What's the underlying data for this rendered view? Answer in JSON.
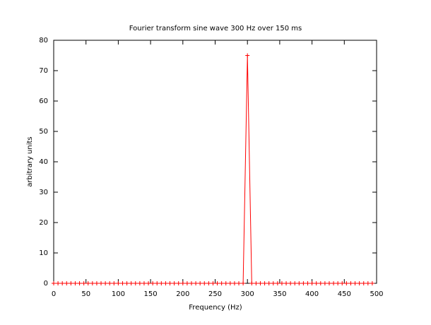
{
  "chart_data": {
    "type": "line",
    "title": "Fourier transform sine wave 300 Hz over 150 ms",
    "xlabel": "Frequency (Hz)",
    "ylabel": "arbitrary units",
    "x": [
      0,
      6.667,
      13.333,
      20,
      26.667,
      33.333,
      40,
      46.667,
      53.333,
      60,
      66.667,
      73.333,
      80,
      86.667,
      93.333,
      100,
      106.667,
      113.333,
      120,
      126.667,
      133.333,
      140,
      146.667,
      153.333,
      160,
      166.667,
      173.333,
      180,
      186.667,
      193.333,
      200,
      206.667,
      213.333,
      220,
      226.667,
      233.333,
      240,
      246.667,
      253.333,
      260,
      266.667,
      273.333,
      280,
      286.667,
      293.333,
      300,
      306.667,
      313.333,
      320,
      326.667,
      333.333,
      340,
      346.667,
      353.333,
      360,
      366.667,
      373.333,
      380,
      386.667,
      393.333,
      400,
      406.667,
      413.333,
      420,
      426.667,
      433.333,
      440,
      446.667,
      453.333,
      460,
      466.667,
      473.333,
      480,
      486.667,
      493.333
    ],
    "series": [
      {
        "color": "#ff0000",
        "values": [
          0,
          0,
          0,
          0,
          0,
          0,
          0,
          0,
          0,
          0,
          0,
          0,
          0,
          0,
          0,
          0,
          0,
          0,
          0,
          0,
          0,
          0,
          0,
          0,
          0,
          0,
          0,
          0,
          0,
          0,
          0,
          0,
          0,
          0,
          0,
          0,
          0,
          0,
          0,
          0,
          0,
          0,
          0,
          0,
          0,
          75,
          0,
          0,
          0,
          0,
          0,
          0,
          0,
          0,
          0,
          0,
          0,
          0,
          0,
          0,
          0,
          0,
          0,
          0,
          0,
          0,
          0,
          0,
          0,
          0,
          0,
          0,
          0,
          0,
          0
        ]
      }
    ],
    "xlim": [
      0,
      500
    ],
    "xticks": [
      0,
      50,
      100,
      150,
      200,
      250,
      300,
      350,
      400,
      450,
      500
    ],
    "ylim": [
      0,
      80
    ],
    "yticks": [
      0,
      10,
      20,
      30,
      40,
      50,
      60,
      70,
      80
    ],
    "marker": "+"
  }
}
